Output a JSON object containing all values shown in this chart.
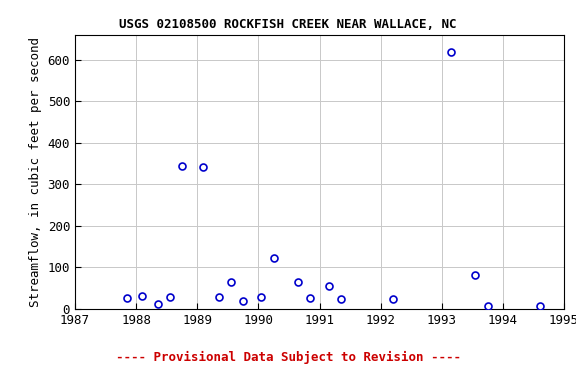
{
  "title": "USGS 02108500 ROCKFISH CREEK NEAR WALLACE, NC",
  "ylabel": "Streamflow, in cubic feet per second",
  "footer": "---- Provisional Data Subject to Revision ----",
  "xlim": [
    1987,
    1995
  ],
  "ylim": [
    0,
    660
  ],
  "xticks": [
    1987,
    1988,
    1989,
    1990,
    1991,
    1992,
    1993,
    1994,
    1995
  ],
  "yticks": [
    0,
    100,
    200,
    300,
    400,
    500,
    600
  ],
  "x_data": [
    1987.85,
    1988.1,
    1988.35,
    1988.55,
    1988.75,
    1989.1,
    1989.35,
    1989.55,
    1989.75,
    1990.05,
    1990.25,
    1990.65,
    1990.85,
    1991.15,
    1991.35,
    1992.2,
    1993.15,
    1993.55,
    1993.75,
    1994.6
  ],
  "y_data": [
    27,
    32,
    12,
    30,
    345,
    342,
    30,
    65,
    20,
    30,
    122,
    65,
    27,
    55,
    25,
    25,
    620,
    82,
    8,
    7
  ],
  "marker_color": "#0000CC",
  "marker_facecolor": "white",
  "marker_size": 5,
  "title_fontsize": 9,
  "axis_label_fontsize": 9,
  "tick_fontsize": 9,
  "footer_color": "#CC0000",
  "footer_fontsize": 9,
  "bg_color": "#ffffff",
  "grid_color": "#c8c8c8"
}
